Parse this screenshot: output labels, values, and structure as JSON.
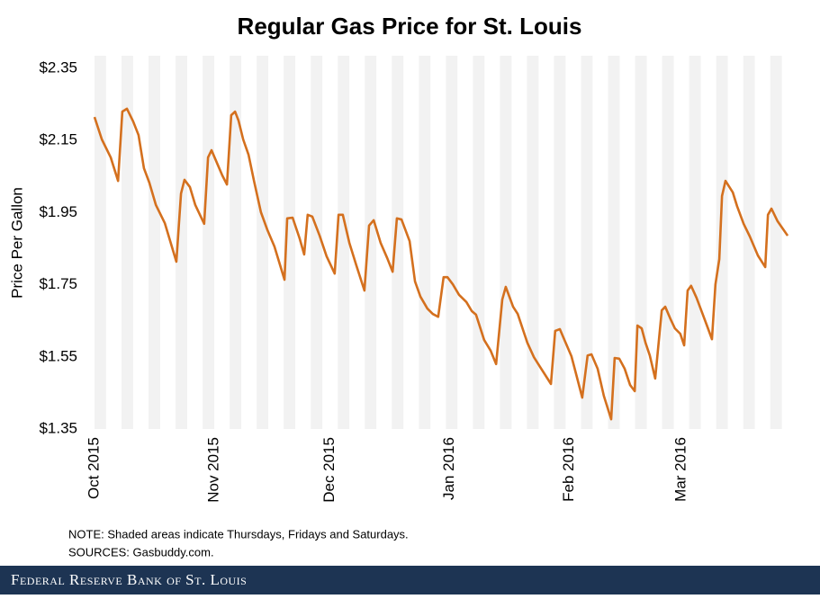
{
  "chart_data": {
    "type": "line",
    "title": "Regular Gas Price for St. Louis",
    "y_label": "Price Per Gallon",
    "note": "NOTE: Shaded areas indicate Thursdays, Fridays and Saturdays.",
    "sources": "SOURCES: Gasbuddy.com.",
    "footer": "Federal Reserve Bank of St. Louis",
    "xlim": [
      0,
      180
    ],
    "xticks": [
      {
        "value": 0,
        "label": "Oct 2015"
      },
      {
        "value": 31,
        "label": "Nov 2015"
      },
      {
        "value": 61,
        "label": "Dec 2015"
      },
      {
        "value": 92,
        "label": "Jan 2016"
      },
      {
        "value": 123,
        "label": "Feb 2016"
      },
      {
        "value": 152,
        "label": "Mar 2016"
      }
    ],
    "ylim": [
      1.35,
      2.35
    ],
    "yticks": [
      {
        "value": 1.35,
        "label": "$1.35"
      },
      {
        "value": 1.55,
        "label": "$1.55"
      },
      {
        "value": 1.75,
        "label": "$1.75"
      },
      {
        "value": 1.95,
        "label": "$1.95"
      },
      {
        "value": 2.15,
        "label": "$2.15"
      },
      {
        "value": 2.35,
        "label": "$2.35"
      }
    ],
    "series": [
      {
        "color": "#d4701e",
        "x": [
          0,
          1.9,
          4.2,
          6.1,
          7.2,
          8.4,
          10,
          11.4,
          12.8,
          14.2,
          15.9,
          18.2,
          21.2,
          22.4,
          23.3,
          24.7,
          26.1,
          28.4,
          29.4,
          30.3,
          31.7,
          33.1,
          34.3,
          35.4,
          36.4,
          37.3,
          38.5,
          39.9,
          41.3,
          43.1,
          44.8,
          46.6,
          49.2,
          49.9,
          51.3,
          53.1,
          54.3,
          55.2,
          56.4,
          58.3,
          60.1,
          62.2,
          63.2,
          64.3,
          66,
          67.8,
          69.9,
          71.1,
          72.3,
          74.1,
          75.8,
          77.2,
          78.3,
          79.5,
          81.6,
          83,
          84.4,
          86.2,
          87.6,
          89,
          90.4,
          91.4,
          92.8,
          94.4,
          96.3,
          97.7,
          98.8,
          100.9,
          102.6,
          104,
          105.6,
          106.5,
          108.4,
          109.6,
          111,
          112.1,
          113.8,
          115.4,
          118.2,
          119.3,
          120.5,
          121.9,
          123.5,
          124.9,
          126.3,
          127.7,
          128.7,
          130.3,
          131.9,
          133.8,
          134.7,
          135.9,
          137.3,
          138.7,
          139.9,
          140.6,
          141.7,
          142.7,
          143.8,
          145.2,
          146.9,
          147.8,
          149.2,
          150.3,
          151.7,
          152.7,
          153.6,
          154.5,
          155.9,
          157.3,
          158.7,
          159.9,
          160.8,
          161.8,
          162.5,
          163.4,
          165.3,
          166.4,
          168.1,
          169.7,
          171.8,
          173.7,
          174.4,
          175.3,
          176.9,
          179.5
        ],
        "values": [
          2.215,
          2.153,
          2.103,
          2.038,
          2.23,
          2.238,
          2.203,
          2.165,
          2.073,
          2.033,
          1.971,
          1.921,
          1.814,
          2.003,
          2.041,
          2.021,
          1.971,
          1.919,
          2.103,
          2.123,
          2.088,
          2.053,
          2.028,
          2.22,
          2.23,
          2.205,
          2.153,
          2.11,
          2.038,
          1.951,
          1.901,
          1.856,
          1.764,
          1.934,
          1.936,
          1.879,
          1.834,
          1.944,
          1.939,
          1.886,
          1.829,
          1.781,
          1.944,
          1.944,
          1.866,
          1.804,
          1.734,
          1.914,
          1.929,
          1.866,
          1.824,
          1.786,
          1.934,
          1.931,
          1.871,
          1.759,
          1.717,
          1.684,
          1.669,
          1.661,
          1.771,
          1.771,
          1.751,
          1.722,
          1.702,
          1.677,
          1.667,
          1.597,
          1.567,
          1.53,
          1.709,
          1.744,
          1.689,
          1.669,
          1.624,
          1.589,
          1.549,
          1.522,
          1.475,
          1.622,
          1.627,
          1.592,
          1.552,
          1.495,
          1.437,
          1.554,
          1.557,
          1.517,
          1.442,
          1.377,
          1.547,
          1.545,
          1.517,
          1.472,
          1.455,
          1.637,
          1.629,
          1.589,
          1.554,
          1.49,
          1.679,
          1.689,
          1.654,
          1.629,
          1.614,
          1.582,
          1.734,
          1.747,
          1.714,
          1.674,
          1.634,
          1.599,
          1.751,
          1.821,
          1.996,
          2.038,
          2.006,
          1.968,
          1.919,
          1.884,
          1.831,
          1.799,
          1.944,
          1.961,
          1.926,
          1.886
        ]
      }
    ]
  }
}
